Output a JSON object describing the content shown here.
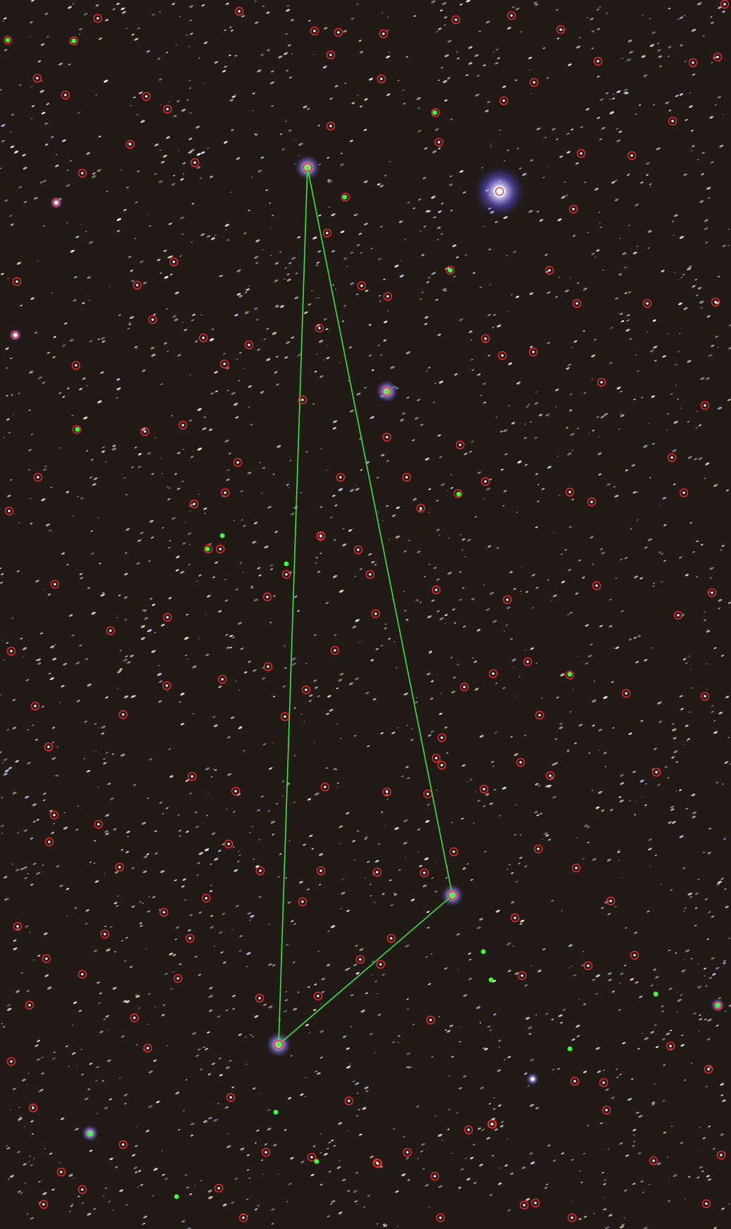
{
  "image": {
    "kind": "astrophotography star field with detection overlay",
    "background_color": "#221a17",
    "marker_colors": {
      "detected_star_circle": "#ff2a2a",
      "matched_star_dot": "#39ff39",
      "pattern_line": "#39e83a",
      "bright_star_halo": "#8a7dff"
    },
    "text": []
  },
  "pattern": {
    "shape": "triangle",
    "vertex_count": 3
  }
}
